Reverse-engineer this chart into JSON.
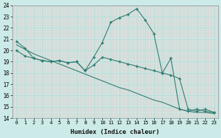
{
  "xlabel": "Humidex (Indice chaleur)",
  "xlim": [
    -0.5,
    23.5
  ],
  "ylim": [
    14,
    24
  ],
  "yticks": [
    14,
    15,
    16,
    17,
    18,
    19,
    20,
    21,
    22,
    23,
    24
  ],
  "xticks": [
    0,
    1,
    2,
    3,
    4,
    5,
    6,
    7,
    8,
    9,
    10,
    11,
    12,
    13,
    14,
    15,
    16,
    17,
    18,
    19,
    20,
    21,
    22,
    23
  ],
  "bg_color": "#cceae7",
  "grid_color": "#b0d8d4",
  "line_color": "#2a7a70",
  "line1_x": [
    0,
    1,
    2,
    3,
    4,
    5,
    6,
    7,
    8,
    9,
    10,
    11,
    12,
    13,
    14,
    15,
    16,
    17,
    18,
    19,
    20,
    21,
    22,
    23
  ],
  "line1_y": [
    20.8,
    20.2,
    19.3,
    19.1,
    19.0,
    19.1,
    18.9,
    19.0,
    18.2,
    19.4,
    20.7,
    22.5,
    22.9,
    23.2,
    23.7,
    22.7,
    21.5,
    18.0,
    19.3,
    14.8,
    14.6,
    14.8,
    14.6,
    14.5
  ],
  "line2_x": [
    0,
    1,
    2,
    3,
    4,
    5,
    6,
    7,
    8,
    9,
    10,
    11,
    12,
    13,
    14,
    15,
    16,
    17,
    18,
    19,
    20,
    21,
    22,
    23
  ],
  "line2_y": [
    20.0,
    19.5,
    19.3,
    19.1,
    19.0,
    19.1,
    18.9,
    19.0,
    18.2,
    18.7,
    19.4,
    19.2,
    19.0,
    18.8,
    18.6,
    18.4,
    18.2,
    18.0,
    17.8,
    17.5,
    14.8,
    14.6,
    14.8,
    14.5
  ],
  "line3_x": [
    0,
    1,
    2,
    3,
    4,
    5,
    6,
    7,
    8,
    9,
    10,
    11,
    12,
    13,
    14,
    15,
    16,
    17,
    18,
    19,
    20,
    21,
    22,
    23
  ],
  "line3_y": [
    20.5,
    20.1,
    19.7,
    19.4,
    19.1,
    18.8,
    18.5,
    18.2,
    17.9,
    17.6,
    17.3,
    17.0,
    16.7,
    16.5,
    16.2,
    15.9,
    15.6,
    15.4,
    15.1,
    14.8,
    14.6,
    14.5,
    14.5,
    14.4
  ]
}
